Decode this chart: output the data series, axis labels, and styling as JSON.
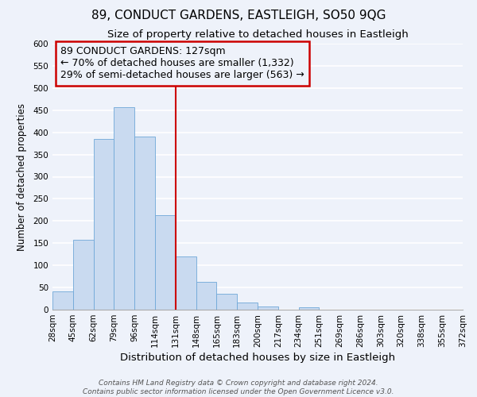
{
  "title": "89, CONDUCT GARDENS, EASTLEIGH, SO50 9QG",
  "subtitle": "Size of property relative to detached houses in Eastleigh",
  "xlabel": "Distribution of detached houses by size in Eastleigh",
  "ylabel": "Number of detached properties",
  "bin_labels": [
    "28sqm",
    "45sqm",
    "62sqm",
    "79sqm",
    "96sqm",
    "114sqm",
    "131sqm",
    "148sqm",
    "165sqm",
    "183sqm",
    "200sqm",
    "217sqm",
    "234sqm",
    "251sqm",
    "269sqm",
    "286sqm",
    "303sqm",
    "320sqm",
    "338sqm",
    "355sqm",
    "372sqm"
  ],
  "bar_values": [
    42,
    157,
    385,
    457,
    390,
    213,
    120,
    62,
    35,
    17,
    8,
    0,
    5,
    0,
    0,
    0,
    0,
    0,
    0,
    0
  ],
  "bar_color": "#c9daf0",
  "bar_edge_color": "#6fa8d8",
  "vline_x_index": 6,
  "vline_color": "#cc0000",
  "annotation_title": "89 CONDUCT GARDENS: 127sqm",
  "annotation_line1": "← 70% of detached houses are smaller (1,332)",
  "annotation_line2": "29% of semi-detached houses are larger (563) →",
  "annotation_box_color": "#cc0000",
  "ylim": [
    0,
    600
  ],
  "yticks": [
    0,
    50,
    100,
    150,
    200,
    250,
    300,
    350,
    400,
    450,
    500,
    550,
    600
  ],
  "footer_line1": "Contains HM Land Registry data © Crown copyright and database right 2024.",
  "footer_line2": "Contains public sector information licensed under the Open Government Licence v3.0.",
  "bg_color": "#eef2fa",
  "grid_color": "#ffffff",
  "title_fontsize": 11,
  "subtitle_fontsize": 9.5,
  "xlabel_fontsize": 9.5,
  "ylabel_fontsize": 8.5,
  "tick_fontsize": 7.5,
  "annotation_fontsize": 9,
  "footer_fontsize": 6.5
}
